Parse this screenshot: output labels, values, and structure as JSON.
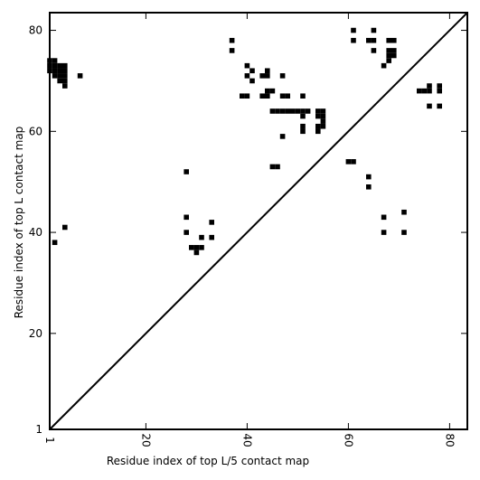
{
  "chart_data": {
    "type": "heatmap",
    "xlabel": "Residue index of top L/5 contact map",
    "ylabel": "Residue index of top L contact map",
    "xlim": [
      1,
      83.5
    ],
    "ylim": [
      1,
      83.5
    ],
    "x_ticks": [
      1,
      20,
      40,
      60,
      80
    ],
    "y_ticks": [
      1,
      20,
      40,
      60,
      80
    ],
    "tick_labels": [
      "1",
      "20",
      "40",
      "60",
      "80"
    ],
    "grid": false,
    "diagonal": true,
    "colors": {
      "cell": "#000000",
      "diagonal": "#000000",
      "background": "#ffffff"
    },
    "cells": [
      [
        1,
        74
      ],
      [
        2,
        74
      ],
      [
        1,
        73
      ],
      [
        2,
        73
      ],
      [
        3,
        73
      ],
      [
        4,
        73
      ],
      [
        1,
        72
      ],
      [
        2,
        72
      ],
      [
        3,
        72
      ],
      [
        4,
        72
      ],
      [
        2,
        71
      ],
      [
        3,
        71
      ],
      [
        4,
        71
      ],
      [
        3,
        70
      ],
      [
        4,
        70
      ],
      [
        4,
        69
      ],
      [
        7,
        71
      ],
      [
        4,
        41
      ],
      [
        2,
        38
      ],
      [
        28,
        52
      ],
      [
        28,
        43
      ],
      [
        28,
        40
      ],
      [
        29,
        37
      ],
      [
        30,
        37
      ],
      [
        31,
        37
      ],
      [
        30,
        36
      ],
      [
        31,
        39
      ],
      [
        33,
        42
      ],
      [
        33,
        39
      ],
      [
        37,
        78
      ],
      [
        37,
        76
      ],
      [
        39,
        67
      ],
      [
        40,
        67
      ],
      [
        40,
        73
      ],
      [
        40,
        71
      ],
      [
        41,
        72
      ],
      [
        41,
        70
      ],
      [
        43,
        71
      ],
      [
        44,
        71
      ],
      [
        44,
        72
      ],
      [
        43,
        67
      ],
      [
        44,
        67
      ],
      [
        44,
        68
      ],
      [
        45,
        68
      ],
      [
        47,
        71
      ],
      [
        47,
        67
      ],
      [
        48,
        67
      ],
      [
        47,
        59
      ],
      [
        45,
        53
      ],
      [
        46,
        53
      ],
      [
        45,
        64
      ],
      [
        46,
        64
      ],
      [
        47,
        64
      ],
      [
        48,
        64
      ],
      [
        49,
        64
      ],
      [
        50,
        64
      ],
      [
        51,
        64
      ],
      [
        52,
        64
      ],
      [
        51,
        67
      ],
      [
        51,
        63
      ],
      [
        51,
        61
      ],
      [
        51,
        60
      ],
      [
        54,
        64
      ],
      [
        55,
        64
      ],
      [
        54,
        63
      ],
      [
        55,
        63
      ],
      [
        55,
        62
      ],
      [
        54,
        61
      ],
      [
        55,
        61
      ],
      [
        54,
        60
      ],
      [
        60,
        54
      ],
      [
        61,
        54
      ],
      [
        61,
        80
      ],
      [
        61,
        78
      ],
      [
        64,
        78
      ],
      [
        65,
        78
      ],
      [
        65,
        80
      ],
      [
        65,
        76
      ],
      [
        64,
        51
      ],
      [
        64,
        49
      ],
      [
        67,
        73
      ],
      [
        68,
        74
      ],
      [
        68,
        75
      ],
      [
        69,
        75
      ],
      [
        68,
        76
      ],
      [
        69,
        76
      ],
      [
        68,
        78
      ],
      [
        69,
        78
      ],
      [
        67,
        43
      ],
      [
        67,
        40
      ],
      [
        71,
        44
      ],
      [
        71,
        40
      ],
      [
        74,
        68
      ],
      [
        75,
        68
      ],
      [
        76,
        68
      ],
      [
        76,
        69
      ],
      [
        76,
        65
      ],
      [
        78,
        69
      ],
      [
        78,
        68
      ],
      [
        78,
        65
      ]
    ]
  }
}
